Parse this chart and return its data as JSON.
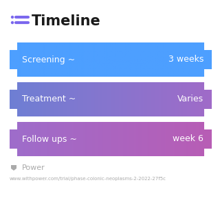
{
  "title": "Timeline",
  "title_icon_color": "#7B68EE",
  "title_fontsize": 15,
  "background_color": "#ffffff",
  "rows": [
    {
      "label": "Screening ~",
      "value": "3 weeks",
      "gradient_left": "#4d9fff",
      "gradient_right": "#4d9fff"
    },
    {
      "label": "Treatment ~",
      "value": "Varies",
      "gradient_left": "#6e7fd4",
      "gradient_right": "#a06bc8"
    },
    {
      "label": "Follow ups ~",
      "value": "week 6",
      "gradient_left": "#9e6dcb",
      "gradient_right": "#b85db5"
    }
  ],
  "row_text_color": "#ffffff",
  "row_label_fontsize": 9,
  "row_value_fontsize": 9,
  "footer_logo_text": "Power",
  "footer_url": "www.withpower.com/trial/phase-colonic-neoplasms-2-2022-27f5c",
  "footer_color": "#aaaaaa",
  "footer_fontsize": 5.0
}
